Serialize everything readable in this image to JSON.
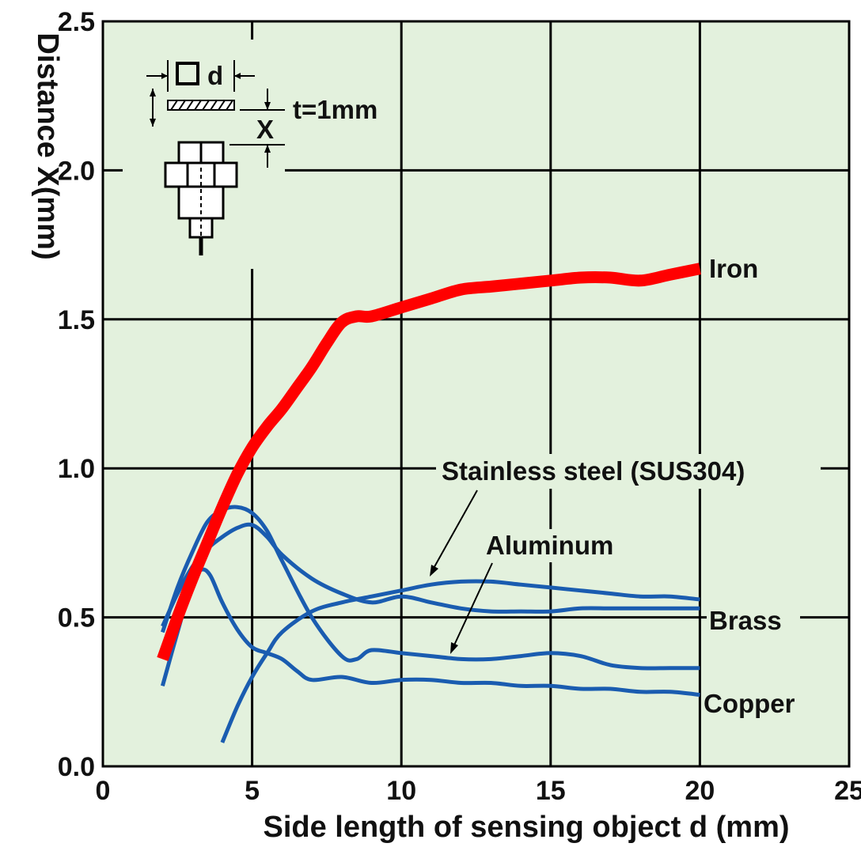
{
  "chart_data": {
    "type": "line",
    "xlabel": "Side length of sensing object d (mm)",
    "ylabel": "Distance X(mm)",
    "xlim": [
      0,
      25
    ],
    "ylim": [
      0,
      2.5
    ],
    "xticks": [
      0,
      5,
      10,
      15,
      20,
      25
    ],
    "yticks": [
      0.0,
      0.5,
      1.0,
      1.5,
      2.0,
      2.5
    ],
    "xtick_labels": [
      "0",
      "5",
      "10",
      "15",
      "20",
      "25"
    ],
    "ytick_labels": [
      "0.0",
      "0.5",
      "1.0",
      "1.5",
      "2.0",
      "2.5"
    ],
    "grid": true,
    "background_color": "#e3f1dd",
    "series": [
      {
        "name": "Iron",
        "color": "#ff0000",
        "x": [
          2,
          2.5,
          3,
          3.5,
          4,
          4.5,
          5,
          5.5,
          6,
          6.5,
          7,
          7.5,
          8,
          8.5,
          9,
          10,
          11,
          12,
          13,
          14,
          15,
          16,
          17,
          18,
          19,
          20
        ],
        "y": [
          0.36,
          0.5,
          0.63,
          0.75,
          0.87,
          0.98,
          1.07,
          1.14,
          1.2,
          1.27,
          1.34,
          1.42,
          1.49,
          1.51,
          1.51,
          1.54,
          1.57,
          1.6,
          1.61,
          1.62,
          1.63,
          1.64,
          1.64,
          1.63,
          1.65,
          1.67
        ]
      },
      {
        "name": "Stainless steel (SUS304)",
        "color": "#1a5cb0",
        "x": [
          4,
          4.5,
          5,
          5.5,
          6,
          7,
          8,
          9,
          10,
          11,
          12,
          13,
          14,
          15,
          16,
          17,
          18,
          19,
          20
        ],
        "y": [
          0.08,
          0.2,
          0.3,
          0.38,
          0.45,
          0.52,
          0.55,
          0.57,
          0.59,
          0.61,
          0.62,
          0.62,
          0.61,
          0.6,
          0.59,
          0.58,
          0.57,
          0.57,
          0.56
        ]
      },
      {
        "name": "Aluminum",
        "color": "#1a5cb0",
        "x": [
          2,
          2.5,
          3,
          3.5,
          4,
          4.5,
          5,
          5.5,
          6,
          7,
          8,
          8.5,
          9,
          10,
          11,
          12,
          13,
          14,
          15,
          16,
          17,
          18,
          19,
          20
        ],
        "y": [
          0.45,
          0.6,
          0.72,
          0.82,
          0.86,
          0.87,
          0.85,
          0.79,
          0.69,
          0.5,
          0.37,
          0.36,
          0.39,
          0.38,
          0.37,
          0.36,
          0.36,
          0.37,
          0.38,
          0.37,
          0.34,
          0.33,
          0.33,
          0.33
        ]
      },
      {
        "name": "Brass",
        "color": "#1a5cb0",
        "x": [
          2,
          2.5,
          3,
          3.5,
          4,
          4.5,
          5,
          5.5,
          6,
          7,
          8,
          9,
          10,
          11,
          12,
          13,
          14,
          15,
          16,
          17,
          18,
          19,
          20
        ],
        "y": [
          0.47,
          0.58,
          0.67,
          0.73,
          0.77,
          0.8,
          0.81,
          0.77,
          0.71,
          0.63,
          0.58,
          0.55,
          0.57,
          0.55,
          0.53,
          0.52,
          0.52,
          0.52,
          0.53,
          0.53,
          0.53,
          0.53,
          0.53
        ]
      },
      {
        "name": "Copper",
        "color": "#1a5cb0",
        "x": [
          2,
          2.5,
          3,
          3.3,
          3.6,
          4,
          4.5,
          5,
          5.5,
          6,
          6.5,
          7,
          8,
          9,
          10,
          11,
          12,
          13,
          14,
          15,
          16,
          17,
          18,
          19,
          20
        ],
        "y": [
          0.27,
          0.45,
          0.62,
          0.66,
          0.64,
          0.55,
          0.46,
          0.4,
          0.38,
          0.36,
          0.32,
          0.29,
          0.3,
          0.28,
          0.29,
          0.29,
          0.28,
          0.28,
          0.27,
          0.27,
          0.26,
          0.26,
          0.25,
          0.25,
          0.24
        ]
      }
    ],
    "annotations": {
      "inset_d_label": "d",
      "inset_x_label": "X",
      "inset_t_label": "t=1mm",
      "stainless_label": "Stainless steel (SUS304)",
      "aluminum_label": "Aluminum"
    }
  }
}
